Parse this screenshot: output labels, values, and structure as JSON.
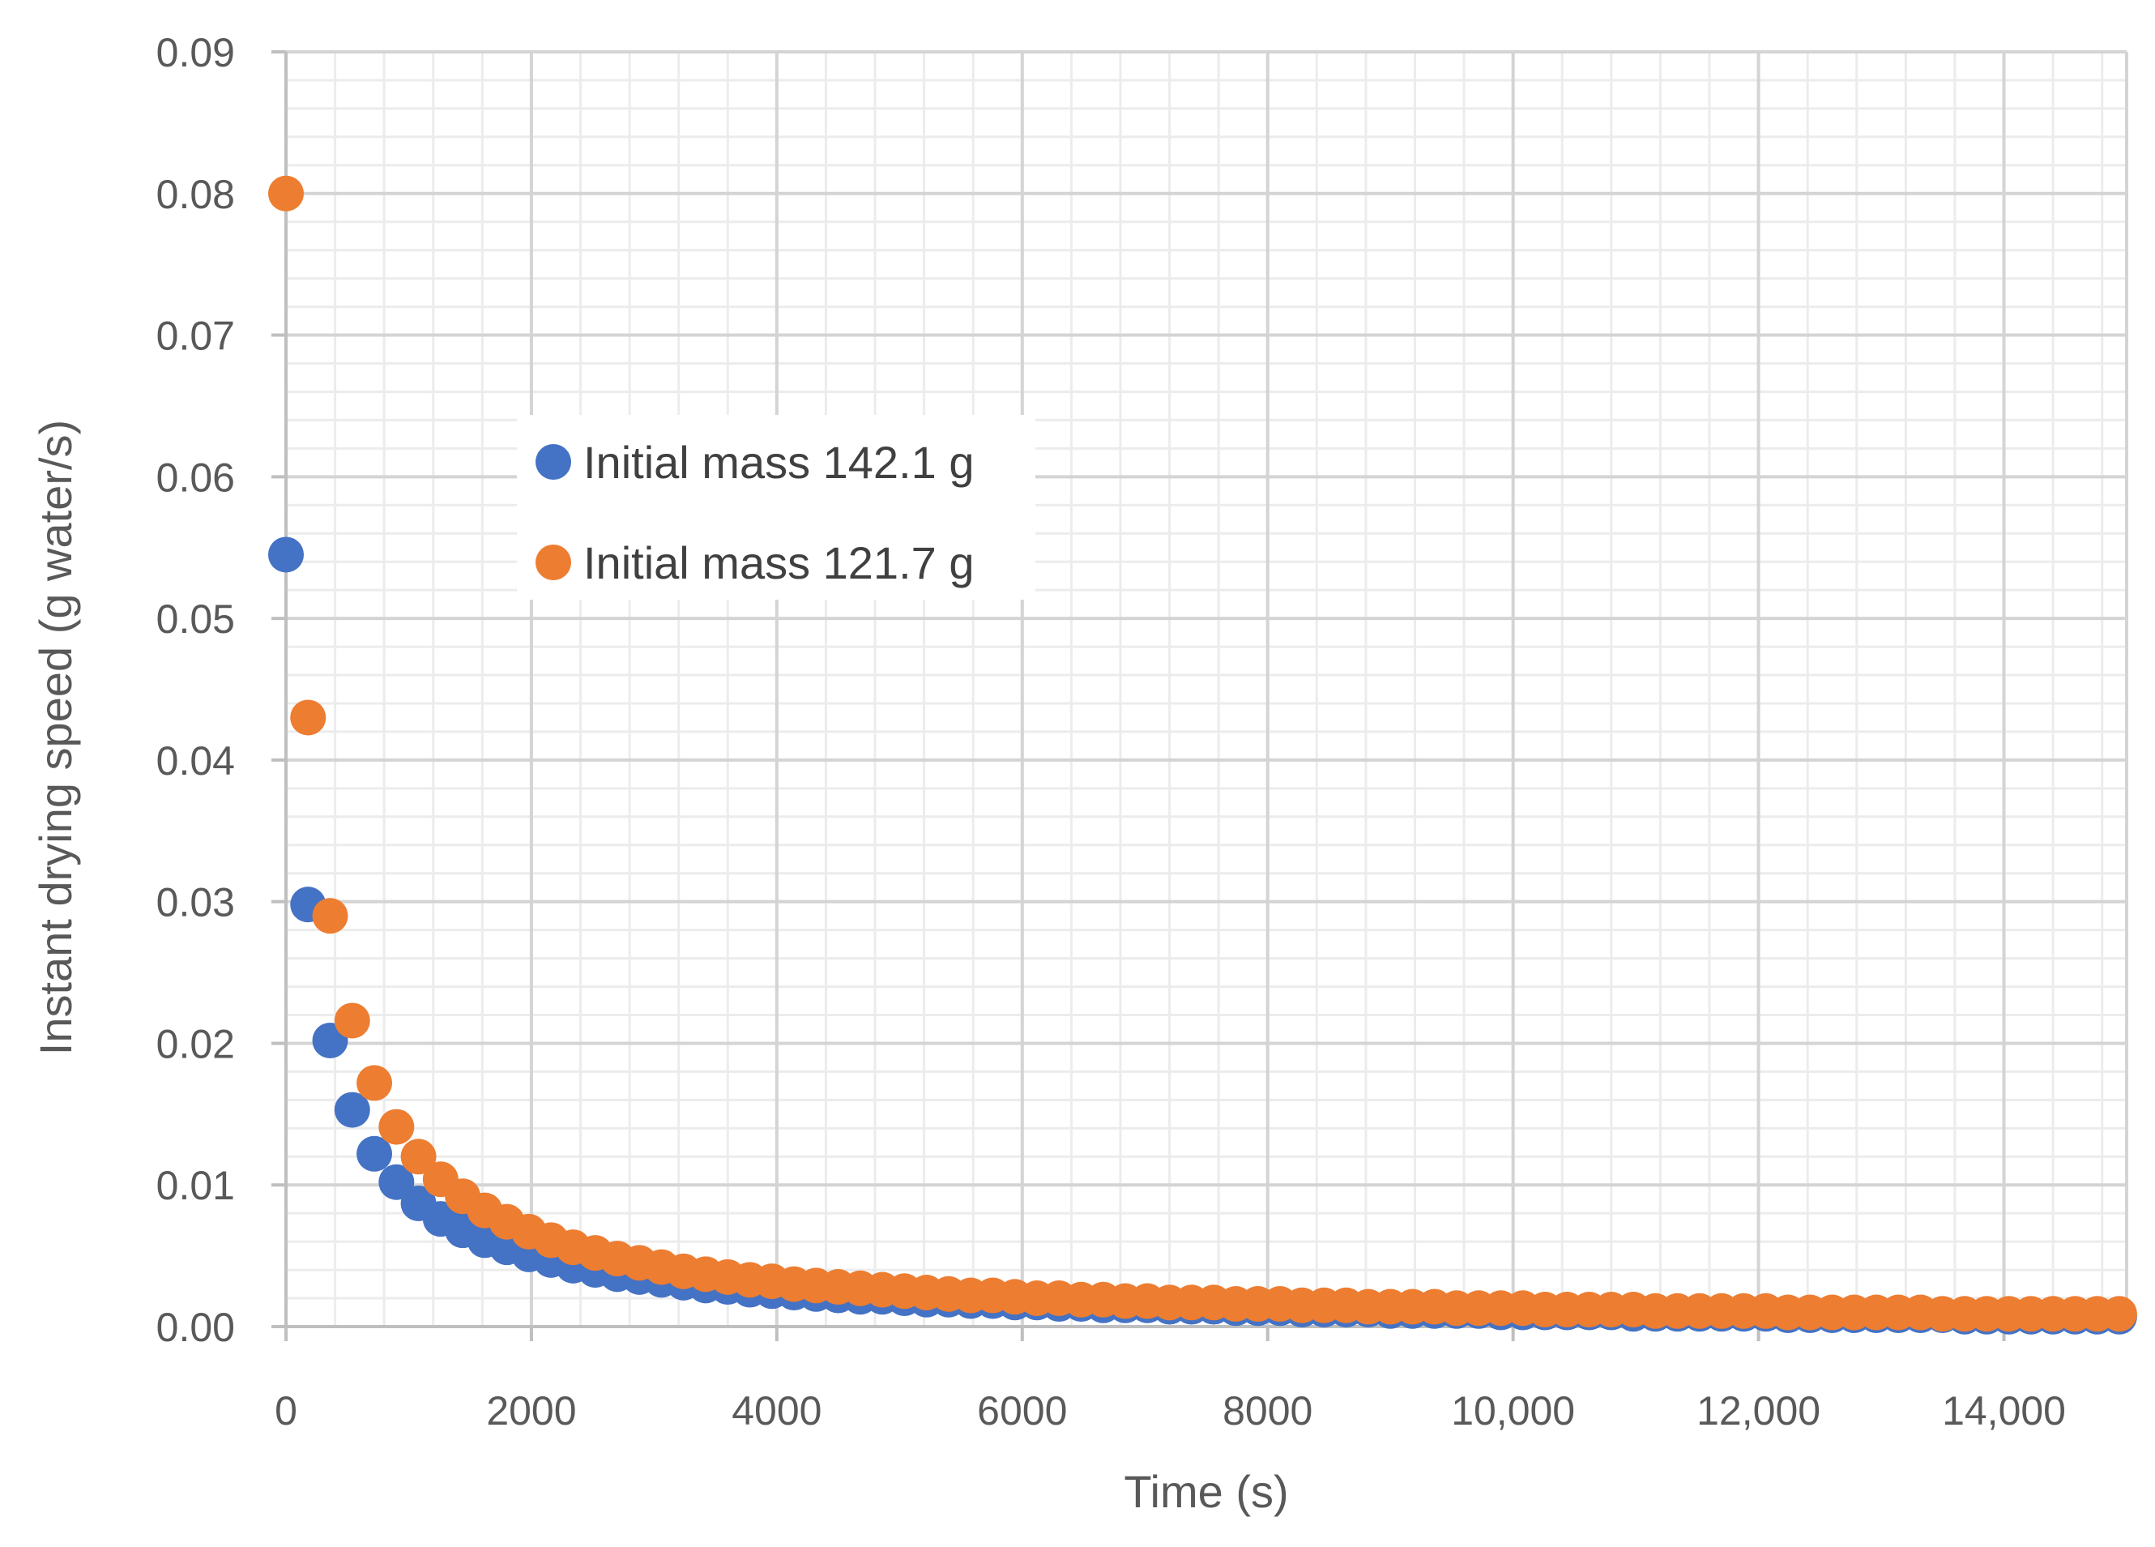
{
  "chart_data": {
    "type": "scatter",
    "title": "",
    "xlabel": "Time (s)",
    "ylabel": "Instant drying speed (g water/s)",
    "xlim": [
      0,
      15000
    ],
    "ylim": [
      0,
      0.09
    ],
    "x_ticks": [
      0,
      2000,
      4000,
      6000,
      8000,
      10000,
      12000,
      14000
    ],
    "x_tick_labels": [
      "0",
      "2000",
      "4000",
      "6000",
      "8000",
      "10,000",
      "12,000",
      "14,000"
    ],
    "y_ticks": [
      0,
      0.01,
      0.02,
      0.03,
      0.04,
      0.05,
      0.06,
      0.07,
      0.08,
      0.09
    ],
    "y_tick_labels": [
      "0.00",
      "0.01",
      "0.02",
      "0.03",
      "0.04",
      "0.05",
      "0.06",
      "0.07",
      "0.08",
      "0.09"
    ],
    "grid": true,
    "minor_grid": true,
    "legend_position": "upper-left inside plot",
    "series": [
      {
        "name": "Initial mass 142.1 g",
        "color": "#4472C4",
        "x": [
          0,
          180,
          360,
          540,
          720,
          900,
          1080,
          1260,
          1440,
          1620,
          1800,
          1980,
          2160,
          2340,
          2520,
          2700,
          2880,
          3060,
          3240,
          3420,
          3600,
          3780,
          3960,
          4140,
          4320,
          4500,
          4680,
          4860,
          5040,
          5220,
          5400,
          5580,
          5760,
          5940,
          6120,
          6300,
          6480,
          6660,
          6840,
          7020,
          7200,
          7380,
          7560,
          7740,
          7920,
          8100,
          8280,
          8460,
          8640,
          8820,
          9000,
          9180,
          9360,
          9540,
          9720,
          9900,
          10080,
          10260,
          10440,
          10620,
          10800,
          10980,
          11160,
          11340,
          11520,
          11700,
          11880,
          12060,
          12240,
          12420,
          12600,
          12780,
          12960,
          13140,
          13320,
          13500,
          13680,
          13860,
          14040,
          14220,
          14400,
          14580,
          14760,
          14940
        ],
        "y": [
          0.0545,
          0.0298,
          0.0202,
          0.0153,
          0.0122,
          0.0102,
          0.0087,
          0.0076,
          0.0068,
          0.0061,
          0.0056,
          0.0051,
          0.0047,
          0.0043,
          0.004,
          0.0037,
          0.0035,
          0.0033,
          0.0031,
          0.0029,
          0.0028,
          0.0026,
          0.0025,
          0.0024,
          0.0023,
          0.0022,
          0.0021,
          0.0021,
          0.002,
          0.0019,
          0.0019,
          0.0018,
          0.0018,
          0.0017,
          0.0017,
          0.0016,
          0.0016,
          0.0015,
          0.0015,
          0.0015,
          0.0014,
          0.0014,
          0.0014,
          0.0013,
          0.0013,
          0.0013,
          0.0012,
          0.0012,
          0.0012,
          0.0012,
          0.0011,
          0.0011,
          0.0011,
          0.0011,
          0.0011,
          0.001,
          0.001,
          0.001,
          0.001,
          0.001,
          0.001,
          0.0009,
          0.0009,
          0.0009,
          0.0009,
          0.0009,
          0.0009,
          0.0009,
          0.0008,
          0.0008,
          0.0008,
          0.0008,
          0.0008,
          0.0008,
          0.0008,
          0.0008,
          0.0007,
          0.0007,
          0.0007,
          0.0007,
          0.0007,
          0.0007,
          0.0007,
          0.0007
        ]
      },
      {
        "name": "Initial mass 121.7 g",
        "color": "#ED7D31",
        "x": [
          0,
          180,
          360,
          540,
          720,
          900,
          1080,
          1260,
          1440,
          1620,
          1800,
          1980,
          2160,
          2340,
          2520,
          2700,
          2880,
          3060,
          3240,
          3420,
          3600,
          3780,
          3960,
          4140,
          4320,
          4500,
          4680,
          4860,
          5040,
          5220,
          5400,
          5580,
          5760,
          5940,
          6120,
          6300,
          6480,
          6660,
          6840,
          7020,
          7200,
          7380,
          7560,
          7740,
          7920,
          8100,
          8280,
          8460,
          8640,
          8820,
          9000,
          9180,
          9360,
          9540,
          9720,
          9900,
          10080,
          10260,
          10440,
          10620,
          10800,
          10980,
          11160,
          11340,
          11520,
          11700,
          11880,
          12060,
          12240,
          12420,
          12600,
          12780,
          12960,
          13140,
          13320,
          13500,
          13680,
          13860,
          14040,
          14220,
          14400,
          14580,
          14760,
          14940
        ],
        "y": [
          0.08,
          0.043,
          0.029,
          0.0216,
          0.0172,
          0.0141,
          0.012,
          0.0104,
          0.0092,
          0.0082,
          0.0074,
          0.0067,
          0.0061,
          0.0056,
          0.0052,
          0.0048,
          0.0045,
          0.0042,
          0.0039,
          0.0037,
          0.0035,
          0.0033,
          0.0032,
          0.003,
          0.0029,
          0.0028,
          0.0027,
          0.0026,
          0.0025,
          0.0024,
          0.0023,
          0.0022,
          0.0022,
          0.0021,
          0.002,
          0.002,
          0.0019,
          0.0019,
          0.0018,
          0.0018,
          0.0017,
          0.0017,
          0.0017,
          0.0016,
          0.0016,
          0.0016,
          0.0015,
          0.0015,
          0.0015,
          0.0014,
          0.0014,
          0.0014,
          0.0014,
          0.0013,
          0.0013,
          0.0013,
          0.0013,
          0.0012,
          0.0012,
          0.0012,
          0.0012,
          0.0012,
          0.0011,
          0.0011,
          0.0011,
          0.0011,
          0.0011,
          0.0011,
          0.001,
          0.001,
          0.001,
          0.001,
          0.001,
          0.001,
          0.001,
          0.0009,
          0.0009,
          0.0009,
          0.0009,
          0.0009,
          0.0009,
          0.0009,
          0.0009,
          0.0009
        ]
      }
    ]
  }
}
